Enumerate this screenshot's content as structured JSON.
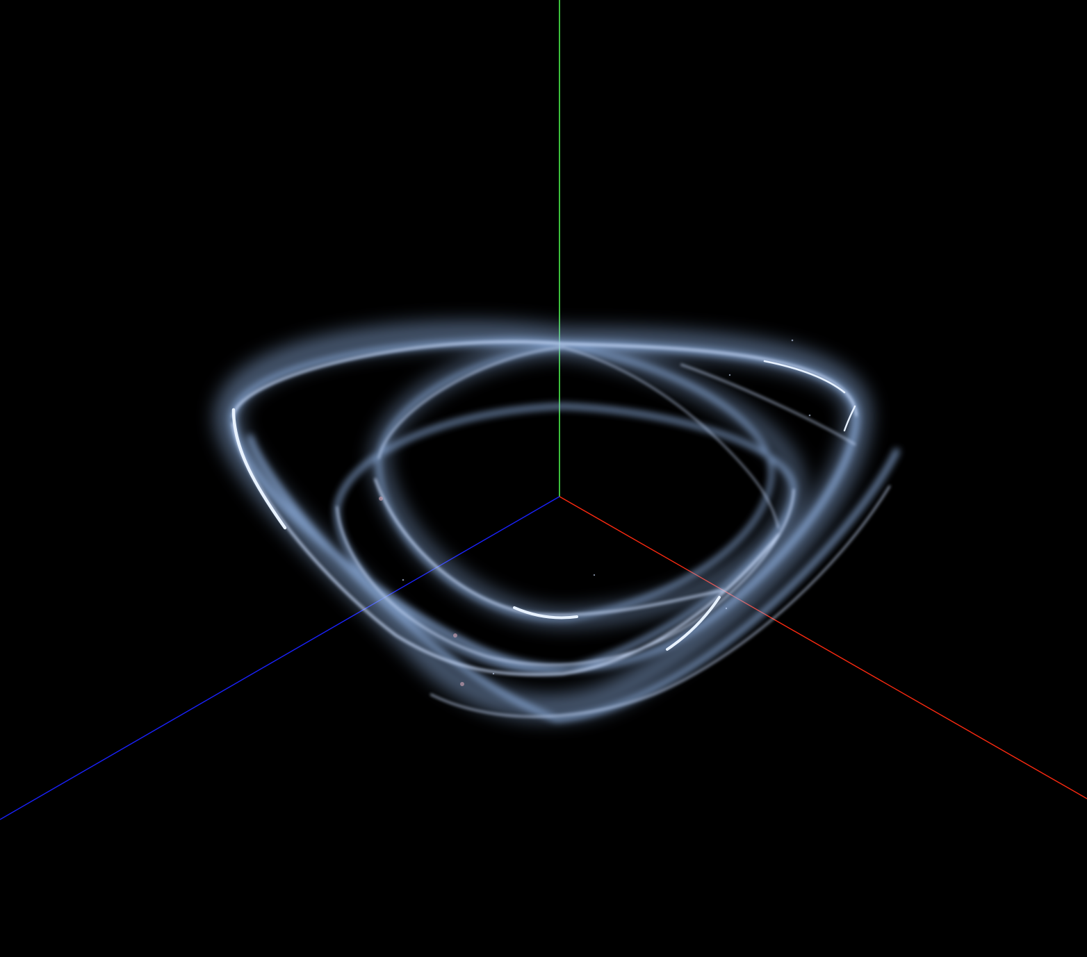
{
  "scene": {
    "background": "#000000",
    "axes": {
      "x": {
        "color": "#ff2a10"
      },
      "y": {
        "color": "#4cf04c"
      },
      "z": {
        "color": "#1a22ff"
      }
    },
    "particles": {
      "color": "#cfe0ff",
      "glow_color": "#8fb0e0",
      "accent_color": "#d8a8b8"
    }
  }
}
